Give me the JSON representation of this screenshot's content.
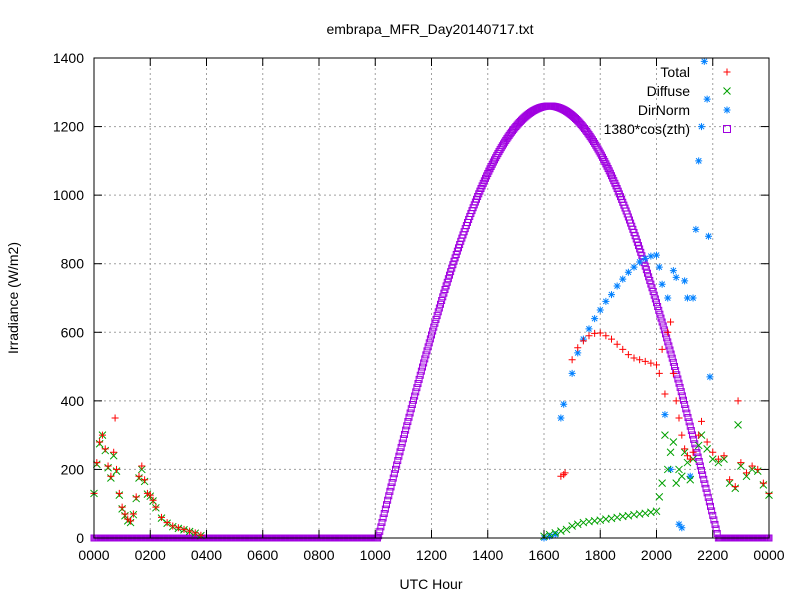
{
  "chart_data": {
    "type": "scatter",
    "title": "embrapa_MFR_Day20140717.txt",
    "xlabel": "UTC Hour",
    "ylabel": "Irradiance (W/m2)",
    "xlim": [
      0,
      24
    ],
    "ylim": [
      0,
      1400
    ],
    "x_ticks": [
      {
        "value": 0,
        "label": "0000"
      },
      {
        "value": 2,
        "label": "0200"
      },
      {
        "value": 4,
        "label": "0400"
      },
      {
        "value": 6,
        "label": "0600"
      },
      {
        "value": 8,
        "label": "0800"
      },
      {
        "value": 10,
        "label": "1000"
      },
      {
        "value": 12,
        "label": "1200"
      },
      {
        "value": 14,
        "label": "1400"
      },
      {
        "value": 16,
        "label": "1600"
      },
      {
        "value": 18,
        "label": "1800"
      },
      {
        "value": 20,
        "label": "2000"
      },
      {
        "value": 22,
        "label": "2200"
      },
      {
        "value": 24,
        "label": "0000"
      }
    ],
    "y_ticks": [
      0,
      200,
      400,
      600,
      800,
      1000,
      1200,
      1400
    ],
    "grid": true,
    "legend_position": "top-right",
    "series": [
      {
        "name": "Total",
        "marker": "plus",
        "color": "#ff0000",
        "points": [
          [
            0.0,
            130
          ],
          [
            0.1,
            220
          ],
          [
            0.2,
            280
          ],
          [
            0.3,
            300
          ],
          [
            0.4,
            260
          ],
          [
            0.5,
            210
          ],
          [
            0.6,
            180
          ],
          [
            0.7,
            250
          ],
          [
            0.75,
            350
          ],
          [
            0.8,
            200
          ],
          [
            0.9,
            130
          ],
          [
            1.0,
            90
          ],
          [
            1.1,
            70
          ],
          [
            1.2,
            55
          ],
          [
            1.3,
            50
          ],
          [
            1.4,
            70
          ],
          [
            1.5,
            120
          ],
          [
            1.6,
            180
          ],
          [
            1.7,
            210
          ],
          [
            1.8,
            170
          ],
          [
            1.9,
            130
          ],
          [
            2.0,
            125
          ],
          [
            2.1,
            110
          ],
          [
            2.2,
            90
          ],
          [
            2.4,
            60
          ],
          [
            2.6,
            45
          ],
          [
            2.8,
            35
          ],
          [
            3.0,
            30
          ],
          [
            3.2,
            25
          ],
          [
            3.4,
            20
          ],
          [
            3.6,
            15
          ],
          [
            3.8,
            8
          ],
          [
            16.6,
            180
          ],
          [
            16.7,
            185
          ],
          [
            16.75,
            190
          ],
          [
            17.0,
            520
          ],
          [
            17.2,
            555
          ],
          [
            17.4,
            575
          ],
          [
            17.6,
            590
          ],
          [
            17.8,
            597
          ],
          [
            18.0,
            598
          ],
          [
            18.2,
            590
          ],
          [
            18.4,
            580
          ],
          [
            18.6,
            565
          ],
          [
            18.8,
            550
          ],
          [
            19.0,
            535
          ],
          [
            19.2,
            525
          ],
          [
            19.4,
            520
          ],
          [
            19.6,
            515
          ],
          [
            19.8,
            510
          ],
          [
            20.0,
            505
          ],
          [
            20.1,
            480
          ],
          [
            20.2,
            550
          ],
          [
            20.3,
            420
          ],
          [
            20.4,
            600
          ],
          [
            20.5,
            630
          ],
          [
            20.6,
            480
          ],
          [
            20.7,
            400
          ],
          [
            20.8,
            350
          ],
          [
            20.9,
            300
          ],
          [
            21.0,
            260
          ],
          [
            21.1,
            240
          ],
          [
            21.2,
            230
          ],
          [
            21.3,
            250
          ],
          [
            21.5,
            300
          ],
          [
            21.6,
            340
          ],
          [
            21.8,
            280
          ],
          [
            22.0,
            250
          ],
          [
            22.2,
            230
          ],
          [
            22.4,
            240
          ],
          [
            22.6,
            170
          ],
          [
            22.8,
            150
          ],
          [
            22.9,
            400
          ],
          [
            23.0,
            220
          ],
          [
            23.2,
            190
          ],
          [
            23.4,
            210
          ],
          [
            23.6,
            200
          ],
          [
            23.8,
            160
          ],
          [
            24.0,
            130
          ]
        ]
      },
      {
        "name": "Diffuse",
        "marker": "cross",
        "color": "#00a000",
        "points": [
          [
            0.0,
            130
          ],
          [
            0.1,
            215
          ],
          [
            0.2,
            275
          ],
          [
            0.3,
            300
          ],
          [
            0.4,
            255
          ],
          [
            0.5,
            205
          ],
          [
            0.6,
            175
          ],
          [
            0.7,
            240
          ],
          [
            0.8,
            195
          ],
          [
            0.9,
            125
          ],
          [
            1.0,
            85
          ],
          [
            1.1,
            65
          ],
          [
            1.2,
            50
          ],
          [
            1.3,
            45
          ],
          [
            1.4,
            68
          ],
          [
            1.5,
            115
          ],
          [
            1.6,
            175
          ],
          [
            1.7,
            200
          ],
          [
            1.8,
            165
          ],
          [
            1.9,
            128
          ],
          [
            2.0,
            122
          ],
          [
            2.1,
            108
          ],
          [
            2.2,
            88
          ],
          [
            2.4,
            58
          ],
          [
            2.6,
            43
          ],
          [
            2.8,
            33
          ],
          [
            3.0,
            28
          ],
          [
            3.2,
            24
          ],
          [
            3.4,
            19
          ],
          [
            3.6,
            14
          ],
          [
            3.8,
            7
          ],
          [
            16.0,
            5
          ],
          [
            16.2,
            10
          ],
          [
            16.4,
            15
          ],
          [
            16.6,
            20
          ],
          [
            16.8,
            25
          ],
          [
            17.0,
            35
          ],
          [
            17.2,
            40
          ],
          [
            17.4,
            45
          ],
          [
            17.6,
            48
          ],
          [
            17.8,
            50
          ],
          [
            18.0,
            52
          ],
          [
            18.2,
            55
          ],
          [
            18.4,
            57
          ],
          [
            18.6,
            60
          ],
          [
            18.8,
            63
          ],
          [
            19.0,
            65
          ],
          [
            19.2,
            68
          ],
          [
            19.4,
            70
          ],
          [
            19.6,
            72
          ],
          [
            19.8,
            75
          ],
          [
            20.0,
            78
          ],
          [
            20.1,
            120
          ],
          [
            20.2,
            160
          ],
          [
            20.3,
            300
          ],
          [
            20.4,
            200
          ],
          [
            20.5,
            250
          ],
          [
            20.6,
            280
          ],
          [
            20.7,
            160
          ],
          [
            20.8,
            200
          ],
          [
            20.9,
            180
          ],
          [
            21.0,
            250
          ],
          [
            21.1,
            220
          ],
          [
            21.2,
            170
          ],
          [
            21.3,
            230
          ],
          [
            21.5,
            270
          ],
          [
            21.6,
            300
          ],
          [
            21.8,
            260
          ],
          [
            22.0,
            230
          ],
          [
            22.2,
            220
          ],
          [
            22.4,
            230
          ],
          [
            22.6,
            160
          ],
          [
            22.8,
            145
          ],
          [
            22.9,
            330
          ],
          [
            23.0,
            210
          ],
          [
            23.2,
            180
          ],
          [
            23.4,
            200
          ],
          [
            23.6,
            195
          ],
          [
            23.8,
            155
          ],
          [
            24.0,
            125
          ]
        ]
      },
      {
        "name": "DirNorm",
        "marker": "star",
        "color": "#0080ff",
        "points": [
          [
            16.0,
            0
          ],
          [
            16.2,
            5
          ],
          [
            16.4,
            10
          ],
          [
            16.6,
            350
          ],
          [
            16.7,
            390
          ],
          [
            17.0,
            480
          ],
          [
            17.2,
            540
          ],
          [
            17.4,
            580
          ],
          [
            17.6,
            610
          ],
          [
            17.8,
            640
          ],
          [
            18.0,
            665
          ],
          [
            18.2,
            690
          ],
          [
            18.4,
            710
          ],
          [
            18.6,
            735
          ],
          [
            18.8,
            755
          ],
          [
            19.0,
            775
          ],
          [
            19.2,
            790
          ],
          [
            19.4,
            805
          ],
          [
            19.6,
            815
          ],
          [
            19.8,
            822
          ],
          [
            20.0,
            825
          ],
          [
            20.1,
            790
          ],
          [
            20.2,
            740
          ],
          [
            20.3,
            360
          ],
          [
            20.4,
            700
          ],
          [
            20.5,
            200
          ],
          [
            20.6,
            780
          ],
          [
            20.7,
            760
          ],
          [
            20.8,
            40
          ],
          [
            20.9,
            30
          ],
          [
            21.0,
            750
          ],
          [
            21.1,
            700
          ],
          [
            21.2,
            180
          ],
          [
            21.3,
            700
          ],
          [
            21.4,
            900
          ],
          [
            21.5,
            1100
          ],
          [
            21.6,
            1200
          ],
          [
            21.7,
            1390
          ],
          [
            21.8,
            1280
          ],
          [
            21.85,
            880
          ],
          [
            21.9,
            470
          ]
        ]
      },
      {
        "name": "1380*cos(zth)",
        "marker": "square",
        "color": "#a000e0",
        "curve": {
          "sunrise": 10.1,
          "noon": 16.2,
          "sunset": 22.2,
          "peak": 1260
        }
      }
    ]
  }
}
